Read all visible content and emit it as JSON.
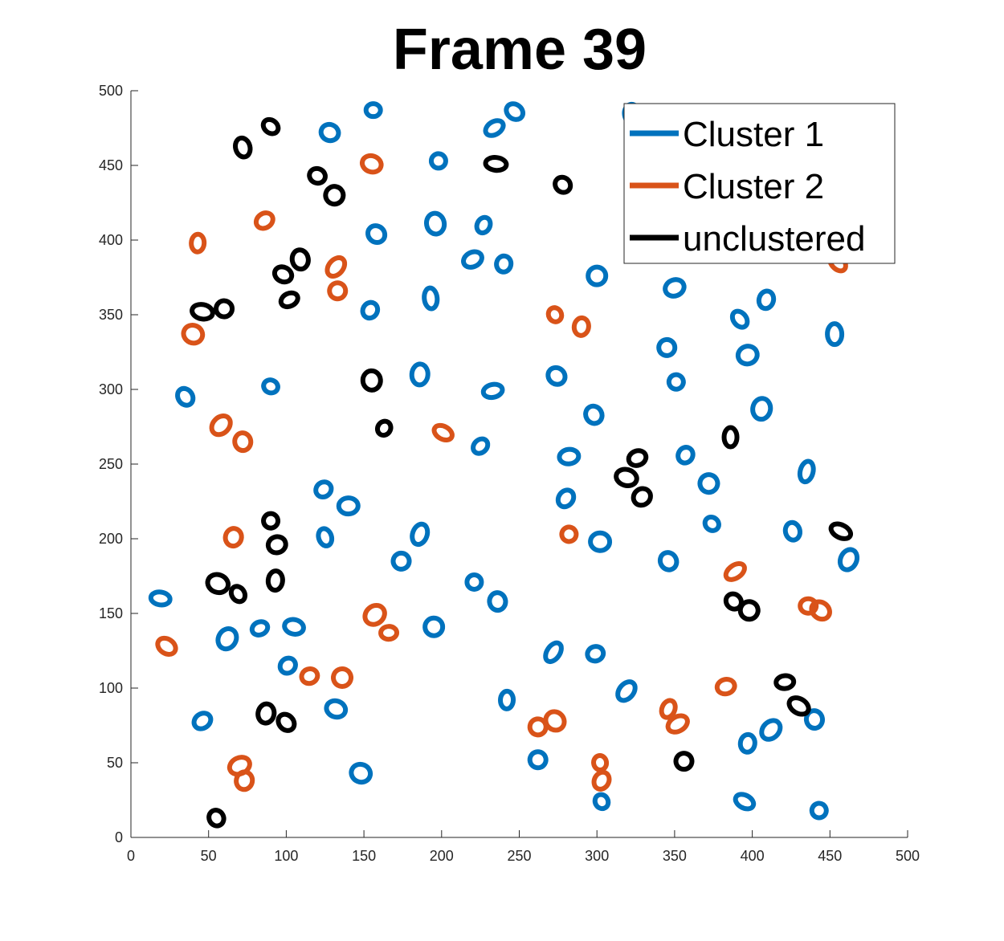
{
  "chart_data": {
    "type": "contour-scatter",
    "title": "Frame 39",
    "xlabel": "",
    "ylabel": "",
    "xlim": [
      0,
      500
    ],
    "ylim": [
      0,
      500
    ],
    "xticks": [
      0,
      50,
      100,
      150,
      200,
      250,
      300,
      350,
      400,
      450,
      500
    ],
    "yticks": [
      0,
      50,
      100,
      150,
      200,
      250,
      300,
      350,
      400,
      450,
      500
    ],
    "grid": false,
    "legend": {
      "placement": "top-right",
      "entries": [
        {
          "name": "Cluster 1",
          "color": "#0072BD"
        },
        {
          "name": "Cluster 2",
          "color": "#D95319"
        },
        {
          "name": "unclustered",
          "color": "#000000"
        }
      ]
    },
    "series": [
      {
        "name": "Cluster 1",
        "color": "#0072BD",
        "points": [
          [
            156,
            487
          ],
          [
            247,
            486
          ],
          [
            323,
            484
          ],
          [
            128,
            472
          ],
          [
            234,
            475
          ],
          [
            198,
            453
          ],
          [
            158,
            404
          ],
          [
            196,
            411
          ],
          [
            227,
            410
          ],
          [
            220,
            387
          ],
          [
            240,
            384
          ],
          [
            300,
            376
          ],
          [
            193,
            361
          ],
          [
            154,
            353
          ],
          [
            350,
            368
          ],
          [
            409,
            360
          ],
          [
            392,
            347
          ],
          [
            453,
            337
          ],
          [
            345,
            328
          ],
          [
            397,
            323
          ],
          [
            90,
            302
          ],
          [
            35,
            295
          ],
          [
            186,
            310
          ],
          [
            274,
            309
          ],
          [
            233,
            299
          ],
          [
            351,
            305
          ],
          [
            298,
            283
          ],
          [
            406,
            287
          ],
          [
            225,
            262
          ],
          [
            282,
            255
          ],
          [
            357,
            256
          ],
          [
            372,
            237
          ],
          [
            435,
            245
          ],
          [
            124,
            233
          ],
          [
            140,
            222
          ],
          [
            280,
            227
          ],
          [
            125,
            201
          ],
          [
            186,
            203
          ],
          [
            174,
            185
          ],
          [
            302,
            198
          ],
          [
            374,
            210
          ],
          [
            426,
            205
          ],
          [
            462,
            186
          ],
          [
            346,
            185
          ],
          [
            19,
            160
          ],
          [
            221,
            171
          ],
          [
            236,
            158
          ],
          [
            62,
            133
          ],
          [
            83,
            140
          ],
          [
            105,
            141
          ],
          [
            101,
            115
          ],
          [
            195,
            141
          ],
          [
            272,
            124
          ],
          [
            299,
            123
          ],
          [
            132,
            86
          ],
          [
            46,
            78
          ],
          [
            242,
            92
          ],
          [
            319,
            98
          ],
          [
            262,
            52
          ],
          [
            148,
            43
          ],
          [
            303,
            24
          ],
          [
            397,
            63
          ],
          [
            412,
            72
          ],
          [
            440,
            79
          ],
          [
            395,
            24
          ],
          [
            443,
            18
          ]
        ]
      },
      {
        "name": "Cluster 2",
        "color": "#D95319",
        "points": [
          [
            155,
            451
          ],
          [
            86,
            413
          ],
          [
            43,
            398
          ],
          [
            132,
            382
          ],
          [
            133,
            366
          ],
          [
            40,
            337
          ],
          [
            273,
            350
          ],
          [
            290,
            342
          ],
          [
            58,
            276
          ],
          [
            72,
            265
          ],
          [
            201,
            271
          ],
          [
            282,
            203
          ],
          [
            66,
            201
          ],
          [
            157,
            149
          ],
          [
            166,
            137
          ],
          [
            23,
            128
          ],
          [
            115,
            108
          ],
          [
            136,
            107
          ],
          [
            389,
            178
          ],
          [
            436,
            155
          ],
          [
            444,
            152
          ],
          [
            383,
            101
          ],
          [
            346,
            86
          ],
          [
            352,
            76
          ],
          [
            262,
            74
          ],
          [
            273,
            78
          ],
          [
            302,
            50
          ],
          [
            303,
            38
          ],
          [
            70,
            48
          ],
          [
            73,
            38
          ],
          [
            455,
            385
          ]
        ]
      },
      {
        "name": "unclustered",
        "color": "#000000",
        "points": [
          [
            90,
            476
          ],
          [
            72,
            462
          ],
          [
            120,
            443
          ],
          [
            131,
            430
          ],
          [
            235,
            451
          ],
          [
            278,
            437
          ],
          [
            109,
            387
          ],
          [
            98,
            377
          ],
          [
            102,
            360
          ],
          [
            46,
            352
          ],
          [
            60,
            354
          ],
          [
            155,
            306
          ],
          [
            163,
            274
          ],
          [
            326,
            254
          ],
          [
            319,
            241
          ],
          [
            329,
            228
          ],
          [
            386,
            268
          ],
          [
            90,
            212
          ],
          [
            94,
            196
          ],
          [
            56,
            170
          ],
          [
            69,
            163
          ],
          [
            93,
            172
          ],
          [
            388,
            158
          ],
          [
            398,
            152
          ],
          [
            457,
            205
          ],
          [
            55,
            13
          ],
          [
            87,
            83
          ],
          [
            100,
            77
          ],
          [
            421,
            104
          ],
          [
            430,
            88
          ],
          [
            356,
            51
          ]
        ]
      }
    ]
  }
}
